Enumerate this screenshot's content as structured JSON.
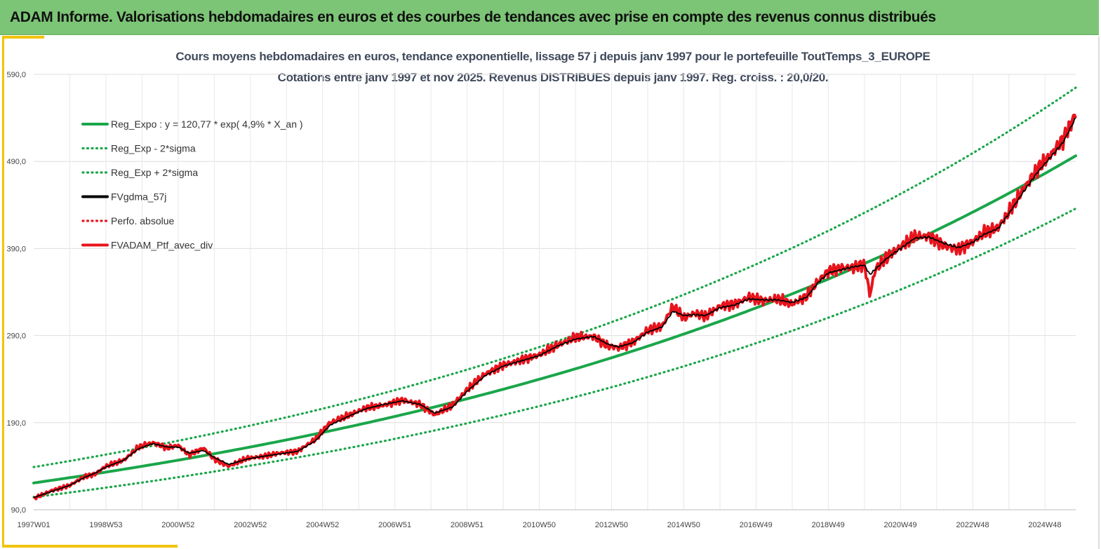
{
  "banner": {
    "title": "ADAM Informe. Valorisations hebdomadaires en euros et des courbes de tendances avec prise en compte des revenus connus distribués",
    "color": "#7cc576"
  },
  "chart_data": {
    "type": "line",
    "title": "Cours moyens hebdomadaires  en euros, tendance exponentielle, lissage 57 j depuis janv 1997 pour le portefeuille ToutTemps_3_EUROPE",
    "subtitle": "Cotations  entre janv 1997 et nov  2025. Revenus DISTRIBUES depuis janv 1997. Reg. croiss. : 20,0/20.",
    "xlabel": "",
    "ylabel": "",
    "ylim": [
      90,
      590
    ],
    "yticks": [
      "90,0",
      "190,0",
      "290,0",
      "390,0",
      "490,0",
      "590,0"
    ],
    "xticks": [
      "1997W01",
      "1998W53",
      "2000W52",
      "2002W52",
      "2004W52",
      "2006W51",
      "2008W51",
      "2010W50",
      "2012W50",
      "2014W50",
      "2016W49",
      "2018W49",
      "2020W49",
      "2022W48",
      "2024W48"
    ],
    "xlim_years": [
      1997.0,
      2025.85
    ],
    "grid": true,
    "legend_position": "top-left",
    "series": [
      {
        "name": "Reg_Expo : y = 120,77 * exp( 4,9% *  X_an )",
        "style": "solid",
        "color": "#1aa64a",
        "formula": {
          "a": 120.77,
          "rate": 0.049
        }
      },
      {
        "name": "Reg_Exp - 2*sigma",
        "style": "dotted",
        "color": "#1aa64a",
        "formula": {
          "a": 104.5,
          "rate": 0.0495
        }
      },
      {
        "name": "Reg_Exp + 2*sigma",
        "style": "dotted",
        "color": "#1aa64a",
        "formula": {
          "a": 139.0,
          "rate": 0.0492
        }
      },
      {
        "name": "FVgdma_57j",
        "style": "solid",
        "color": "#000000"
      },
      {
        "name": "Perfo. absolue",
        "style": "dotted",
        "color": "#e8141c"
      },
      {
        "name": "FVADAM_Ptf_avec_div",
        "style": "solid",
        "color": "#e8141c",
        "x": [
          1997.0,
          1997.5,
          1998.0,
          1998.4,
          1998.7,
          1999.0,
          1999.5,
          1999.9,
          2000.3,
          2000.7,
          2001.0,
          2001.3,
          2001.7,
          2002.0,
          2002.4,
          2002.9,
          2003.3,
          2003.8,
          2004.3,
          2004.8,
          2005.2,
          2005.7,
          2006.2,
          2006.7,
          2007.2,
          2007.7,
          2008.1,
          2008.6,
          2009.0,
          2009.5,
          2010.0,
          2010.5,
          2011.0,
          2011.5,
          2012.0,
          2012.5,
          2012.9,
          2013.2,
          2013.6,
          2014.0,
          2014.4,
          2014.7,
          2015.0,
          2015.3,
          2015.6,
          2016.0,
          2016.4,
          2016.8,
          2017.2,
          2017.6,
          2018.0,
          2018.4,
          2018.7,
          2019.0,
          2019.4,
          2019.7,
          2020.0,
          2020.15,
          2020.3,
          2020.6,
          2021.0,
          2021.4,
          2021.8,
          2022.2,
          2022.6,
          2023.0,
          2023.3,
          2023.7,
          2024.0,
          2024.4,
          2024.8,
          2025.2,
          2025.5,
          2025.85
        ],
        "values": [
          103,
          112,
          118,
          128,
          131,
          140,
          147,
          162,
          167,
          161,
          164,
          153,
          161,
          148,
          140,
          149,
          151,
          155,
          157,
          171,
          190,
          198,
          207,
          210,
          216,
          211,
          199,
          210,
          228,
          246,
          256,
          262,
          268,
          279,
          288,
          289,
          278,
          276,
          283,
          296,
          301,
          324,
          310,
          316,
          312,
          324,
          326,
          334,
          330,
          332,
          326,
          335,
          352,
          364,
          368,
          368,
          372,
          336,
          366,
          379,
          392,
          404,
          404,
          393,
          389,
          398,
          408,
          414,
          432,
          458,
          482,
          500,
          515,
          545
        ]
      }
    ],
    "smoothed_values_57j": [
      104,
      111,
      118,
      127,
      132,
      139,
      147,
      160,
      166,
      162,
      162,
      155,
      158,
      150,
      142,
      148,
      151,
      154,
      157,
      169,
      187,
      197,
      206,
      211,
      215,
      211,
      201,
      208,
      226,
      244,
      255,
      261,
      267,
      278,
      286,
      289,
      280,
      277,
      282,
      294,
      300,
      318,
      313,
      314,
      313,
      322,
      325,
      332,
      331,
      331,
      328,
      334,
      350,
      362,
      366,
      369,
      371,
      360,
      366,
      378,
      390,
      402,
      403,
      396,
      391,
      397,
      406,
      413,
      430,
      455,
      478,
      497,
      512,
      540
    ]
  }
}
